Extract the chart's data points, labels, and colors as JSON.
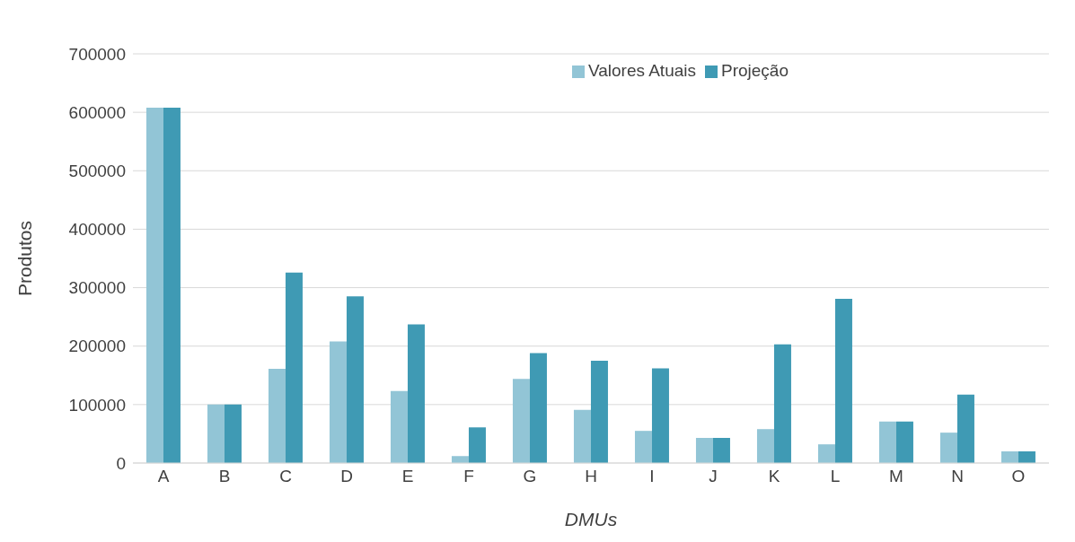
{
  "chart_data": {
    "type": "bar",
    "xlabel": "DMUs",
    "ylabel": "Produtos",
    "categories": [
      "A",
      "B",
      "C",
      "D",
      "E",
      "F",
      "G",
      "H",
      "I",
      "J",
      "K",
      "L",
      "M",
      "N",
      "O"
    ],
    "series": [
      {
        "name": "Valores Atuais",
        "color": "#92c5d6",
        "values": [
          608000,
          100000,
          161000,
          208000,
          123000,
          12000,
          144000,
          91000,
          55000,
          43000,
          58000,
          32000,
          71000,
          52000,
          20000
        ]
      },
      {
        "name": "Projeção",
        "color": "#3f9ab4",
        "values": [
          608000,
          100000,
          326000,
          285000,
          237000,
          61000,
          188000,
          175000,
          162000,
          43000,
          203000,
          281000,
          71000,
          117000,
          20000
        ]
      }
    ],
    "ylim": [
      0,
      700000
    ],
    "yticks": [
      0,
      100000,
      200000,
      300000,
      400000,
      500000,
      600000,
      700000
    ],
    "grid": "y",
    "legend": "top right"
  }
}
